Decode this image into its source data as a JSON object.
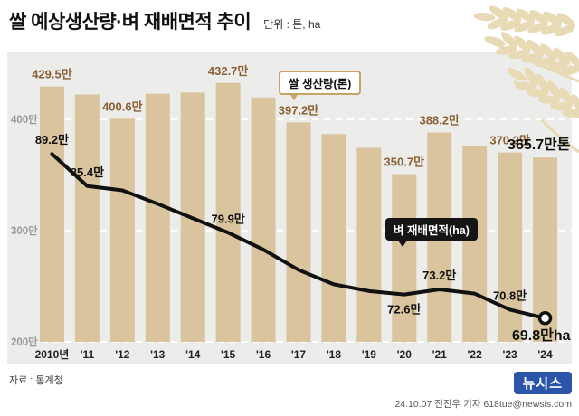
{
  "header": {
    "title": "쌀 예상생산량·벼 재배면적 추이",
    "unit_note": "단위 : 톤, ha"
  },
  "legend": {
    "production": "쌀 생산량(톤)",
    "area": "벼 재배면적(ha)"
  },
  "footer": {
    "source": "자료 : 통계청",
    "logo": "뉴시스",
    "credit": "24.10.07 전진우 기자 618tue@newsis.com"
  },
  "colors": {
    "bar": "#d9c49e",
    "bar_label": "#8a6134",
    "line": "#111111",
    "grid": "#ffffff",
    "plot_bg": "#ececea",
    "tick_label": "#999999",
    "axis_label": "#222222",
    "accent_border": "#c9a265",
    "tag_bg": "#151515",
    "newsis_blue": "#2b55a8",
    "deco": "#e8dab4"
  },
  "chart_data": {
    "type": "bar",
    "title": "쌀 예상생산량·벼 재배면적 추이",
    "unit_note": "단위 : 톤, ha",
    "categories": [
      "2010년",
      "'11",
      "'12",
      "'13",
      "'14",
      "'15",
      "'16",
      "'17",
      "'18",
      "'19",
      "'20",
      "'21",
      "'22",
      "'23",
      "'24"
    ],
    "series": [
      {
        "name": "쌀 생산량(톤)",
        "type": "bar",
        "unit": "만톤",
        "values": [
          429.5,
          422.4,
          400.6,
          423.0,
          424.1,
          432.7,
          419.7,
          397.2,
          386.8,
          374.4,
          350.7,
          388.2,
          376.4,
          370.2,
          365.7
        ],
        "labels": [
          {
            "index": 0,
            "text": "429.5만"
          },
          {
            "index": 2,
            "text": "400.6만"
          },
          {
            "index": 5,
            "text": "432.7만"
          },
          {
            "index": 7,
            "text": "397.2만"
          },
          {
            "index": 10,
            "text": "350.7만"
          },
          {
            "index": 11,
            "text": "388.2만"
          },
          {
            "index": 13,
            "text": "370.2만"
          },
          {
            "index": 14,
            "text": "365.7만톤",
            "emphasis": true
          }
        ]
      },
      {
        "name": "벼 재배면적(ha)",
        "type": "line",
        "unit": "만ha",
        "values": [
          89.2,
          85.4,
          84.9,
          83.3,
          81.6,
          79.9,
          77.9,
          75.5,
          73.8,
          73.0,
          72.6,
          73.2,
          72.7,
          70.8,
          69.8
        ],
        "labels": [
          {
            "index": 0,
            "text": "89.2만",
            "pos": "above"
          },
          {
            "index": 1,
            "text": "85.4만",
            "pos": "above"
          },
          {
            "index": 5,
            "text": "79.9만",
            "pos": "above"
          },
          {
            "index": 10,
            "text": "72.6만",
            "pos": "below"
          },
          {
            "index": 11,
            "text": "73.2만",
            "pos": "above"
          },
          {
            "index": 13,
            "text": "70.8만",
            "pos": "above"
          },
          {
            "index": 14,
            "text": "69.8만ha",
            "pos": "below",
            "emphasis": true
          }
        ]
      }
    ],
    "y_axis": {
      "ticks": [
        "400만",
        "300만",
        "200만"
      ],
      "tick_values": [
        400,
        300,
        200
      ],
      "bar_range": [
        200,
        450
      ]
    },
    "line_range": [
      67,
      92
    ],
    "grid": "dashed-white-horizontal",
    "legend_position": "inside-plot-callouts"
  }
}
